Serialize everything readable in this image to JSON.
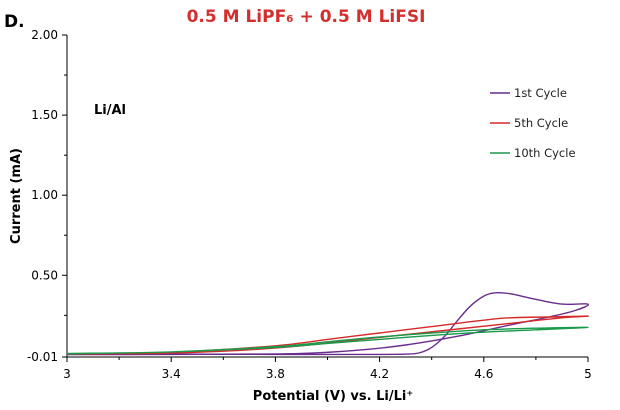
{
  "panel_label": "D.",
  "chart_data": {
    "type": "line",
    "title": "0.5 M LiPF₆ + 0.5 M LiFSI",
    "title_color": "#d32f2f",
    "xlabel": "Potential (V) vs. Li/Li⁺",
    "ylabel": "Current (mA)",
    "annotation": "Li/Al",
    "xlim": [
      3,
      5
    ],
    "ylim": [
      -0.01,
      2.0
    ],
    "x_ticks": [
      "3",
      "3.4",
      "3.8",
      "4.2",
      "4.6",
      "5"
    ],
    "y_ticks": [
      "-0.01",
      "0.50",
      "1.00",
      "1.50",
      "2.00"
    ],
    "grid": false,
    "legend_position": "top-right",
    "series": [
      {
        "name": "1st Cycle",
        "color": "#6a2c8e",
        "points": [
          [
            3.0,
            0.01
          ],
          [
            3.4,
            0.008
          ],
          [
            3.8,
            0.006
          ],
          [
            4.0,
            0.006
          ],
          [
            4.2,
            0.006
          ],
          [
            4.3,
            0.008
          ],
          [
            4.35,
            0.015
          ],
          [
            4.4,
            0.05
          ],
          [
            4.45,
            0.12
          ],
          [
            4.5,
            0.22
          ],
          [
            4.55,
            0.31
          ],
          [
            4.6,
            0.37
          ],
          [
            4.64,
            0.39
          ],
          [
            4.7,
            0.385
          ],
          [
            4.8,
            0.35
          ],
          [
            4.9,
            0.32
          ],
          [
            5.0,
            0.32
          ],
          [
            4.95,
            0.28
          ],
          [
            4.85,
            0.24
          ],
          [
            4.7,
            0.19
          ],
          [
            4.5,
            0.12
          ],
          [
            4.3,
            0.065
          ],
          [
            4.1,
            0.03
          ],
          [
            3.9,
            0.012
          ],
          [
            3.7,
            0.008
          ],
          [
            3.4,
            0.006
          ],
          [
            3.0,
            0.005
          ]
        ]
      },
      {
        "name": "5th Cycle",
        "color": "#d62a2a",
        "points": [
          [
            3.0,
            0.01
          ],
          [
            3.4,
            0.02
          ],
          [
            3.8,
            0.06
          ],
          [
            4.0,
            0.1
          ],
          [
            4.2,
            0.14
          ],
          [
            4.4,
            0.18
          ],
          [
            4.6,
            0.22
          ],
          [
            4.7,
            0.235
          ],
          [
            4.85,
            0.24
          ],
          [
            5.0,
            0.245
          ],
          [
            4.9,
            0.235
          ],
          [
            4.7,
            0.2
          ],
          [
            4.5,
            0.165
          ],
          [
            4.3,
            0.13
          ],
          [
            4.1,
            0.095
          ],
          [
            3.9,
            0.06
          ],
          [
            3.7,
            0.035
          ],
          [
            3.4,
            0.015
          ],
          [
            3.0,
            0.008
          ]
        ]
      },
      {
        "name": "10th Cycle",
        "color": "#1a9a4a",
        "points": [
          [
            3.0,
            0.012
          ],
          [
            3.4,
            0.022
          ],
          [
            3.8,
            0.055
          ],
          [
            4.0,
            0.085
          ],
          [
            4.2,
            0.115
          ],
          [
            4.4,
            0.14
          ],
          [
            4.6,
            0.16
          ],
          [
            4.8,
            0.17
          ],
          [
            5.0,
            0.175
          ],
          [
            4.8,
            0.16
          ],
          [
            4.6,
            0.145
          ],
          [
            4.4,
            0.125
          ],
          [
            4.2,
            0.1
          ],
          [
            4.0,
            0.075
          ],
          [
            3.8,
            0.05
          ],
          [
            3.4,
            0.022
          ],
          [
            3.0,
            0.01
          ]
        ]
      }
    ]
  }
}
